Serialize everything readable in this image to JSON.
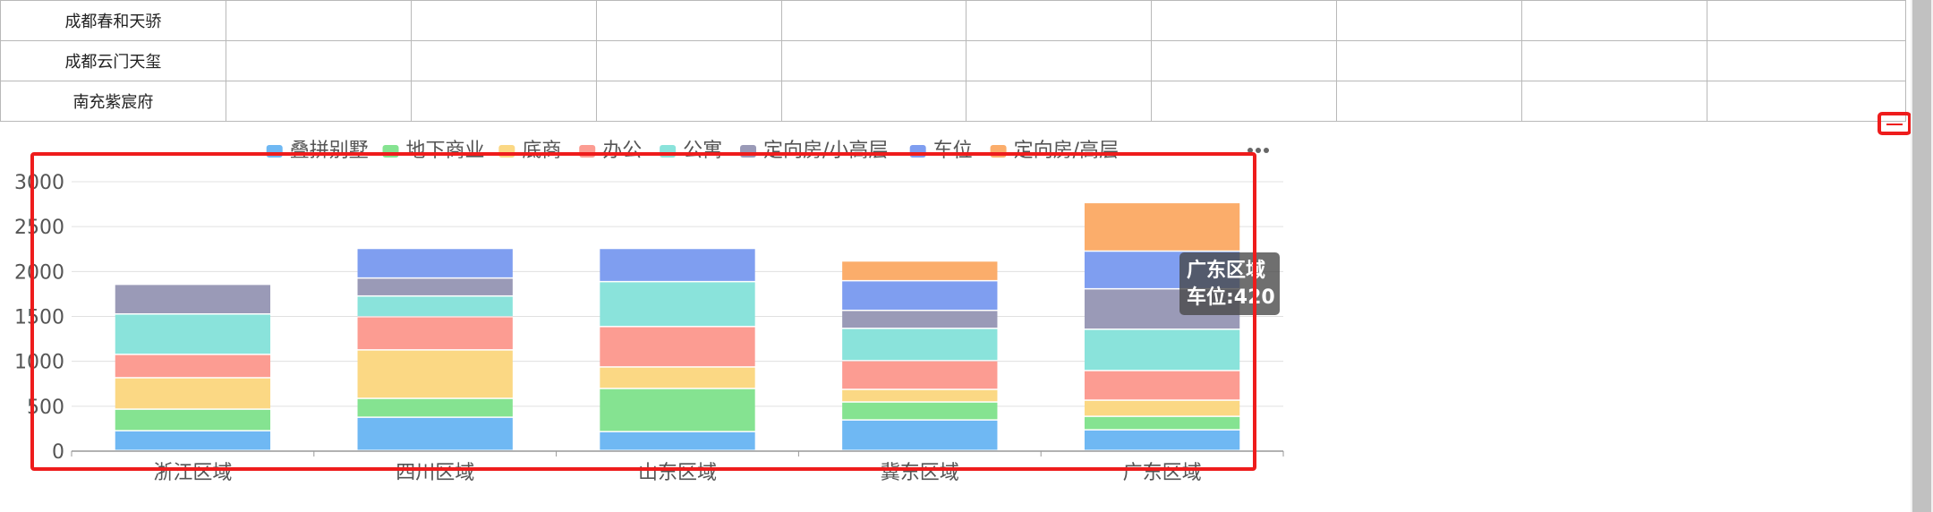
{
  "table": {
    "rows": [
      {
        "name": "成都春和天骄"
      },
      {
        "name": "成都云门天玺"
      },
      {
        "name": "南充紫宸府"
      }
    ]
  },
  "chart_data": {
    "type": "bar",
    "stacked": true,
    "categories": [
      "浙江区域",
      "四川区域",
      "山东区域",
      "冀东区域",
      "广东区域"
    ],
    "ylim": [
      0,
      3000
    ],
    "yticks": [
      0,
      500,
      1000,
      1500,
      2000,
      2500,
      3000
    ],
    "grid": true,
    "legend_position": "top",
    "series": [
      {
        "name": "叠拼别墅",
        "color": "#6fb8f3",
        "values": [
          220,
          370,
          210,
          340,
          230
        ]
      },
      {
        "name": "地下商业",
        "color": "#85e391",
        "values": [
          240,
          210,
          480,
          200,
          150
        ]
      },
      {
        "name": "底商",
        "color": "#fbd884",
        "values": [
          350,
          540,
          240,
          140,
          180
        ]
      },
      {
        "name": "办公",
        "color": "#fc9c92",
        "values": [
          260,
          370,
          450,
          320,
          330
        ]
      },
      {
        "name": "公寓",
        "color": "#8ae3db",
        "values": [
          450,
          230,
          500,
          360,
          460
        ]
      },
      {
        "name": "定向房/小高层",
        "color": "#9a9ab7",
        "values": [
          330,
          200,
          0,
          200,
          450
        ]
      },
      {
        "name": "车位",
        "color": "#7f9ef0",
        "values": [
          0,
          330,
          370,
          330,
          420
        ]
      },
      {
        "name": "定向房/高层",
        "color": "#fbad6b",
        "values": [
          0,
          0,
          0,
          220,
          540
        ]
      }
    ]
  },
  "tooltip": {
    "title": "广东区域",
    "line": "车位:420"
  },
  "toolbox_icon": "more-icon",
  "colors": {
    "highlight": "#ee1c1c",
    "grid": "#e0e0e0",
    "axis": "#999999"
  }
}
